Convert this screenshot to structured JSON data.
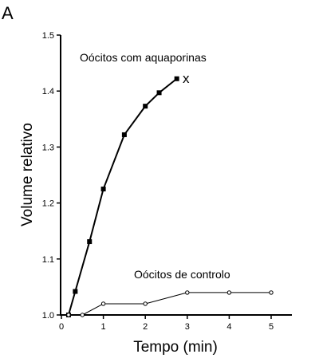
{
  "panel_label": "A",
  "chart_data": {
    "type": "line",
    "xlabel": "Tempo (min)",
    "ylabel": "Volume relativo",
    "xlim": [
      0,
      5.5
    ],
    "ylim": [
      1.0,
      1.5
    ],
    "xticks": [
      0,
      1,
      2,
      3,
      4,
      5
    ],
    "yticks": [
      1.0,
      1.1,
      1.2,
      1.3,
      1.4,
      1.5
    ],
    "ytick_labels": [
      "1.0",
      "1.1",
      "1.2",
      "1.3",
      "1.4",
      "1.5"
    ],
    "grid": false,
    "series": [
      {
        "name": "Oócitos com aquaporinas",
        "marker": "filled-square",
        "line_width": 2,
        "x": [
          0.17,
          0.33,
          0.67,
          1.0,
          1.5,
          2.0,
          2.33,
          2.75
        ],
        "y": [
          1.0,
          1.042,
          1.131,
          1.225,
          1.322,
          1.373,
          1.397,
          1.422
        ]
      },
      {
        "name": "Oócitos de controlo",
        "marker": "open-circle",
        "line_width": 1,
        "x": [
          0.17,
          0.5,
          1.0,
          2.0,
          3.0,
          4.0,
          5.0
        ],
        "y": [
          1.0,
          1.0,
          1.02,
          1.02,
          1.04,
          1.04,
          1.04
        ]
      }
    ],
    "annotations": [
      {
        "text": "x",
        "near_series": 0
      }
    ]
  }
}
